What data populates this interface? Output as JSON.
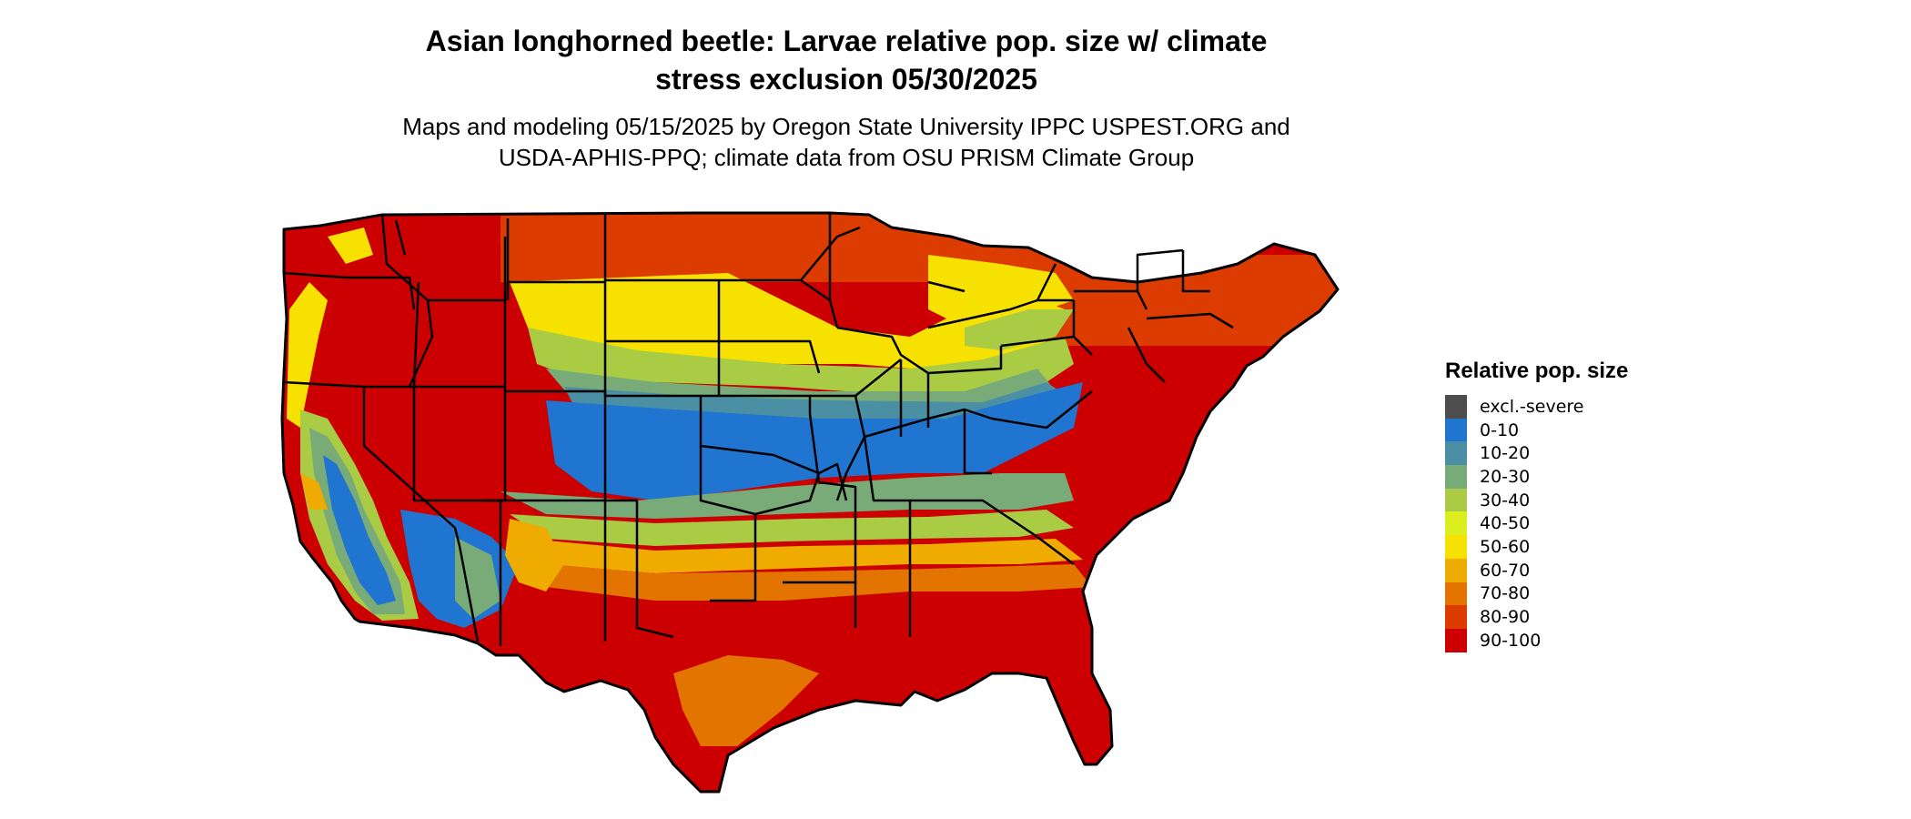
{
  "title_line1": "Asian longhorned beetle: Larvae relative pop. size w/ climate",
  "title_line2": "stress exclusion 05/30/2025",
  "subtitle_line1": "Maps and modeling 05/15/2025 by Oregon State University IPPC USPEST.ORG and",
  "subtitle_line2": "USDA-APHIS-PPQ; climate data from OSU PRISM Climate Group",
  "legend": {
    "title": "Relative pop. size",
    "items": [
      {
        "label": "excl.-severe",
        "color": "#4d4d4d"
      },
      {
        "label": "0-10",
        "color": "#1f75cf"
      },
      {
        "label": "10-20",
        "color": "#4a8fa3"
      },
      {
        "label": "20-30",
        "color": "#78ab78"
      },
      {
        "label": "30-40",
        "color": "#a9cc44"
      },
      {
        "label": "40-50",
        "color": "#dcef1e"
      },
      {
        "label": "50-60",
        "color": "#f7e100"
      },
      {
        "label": "60-70",
        "color": "#f0ab00"
      },
      {
        "label": "70-80",
        "color": "#e47400"
      },
      {
        "label": "80-90",
        "color": "#dc3c00"
      },
      {
        "label": "90-100",
        "color": "#cc0000"
      }
    ]
  }
}
